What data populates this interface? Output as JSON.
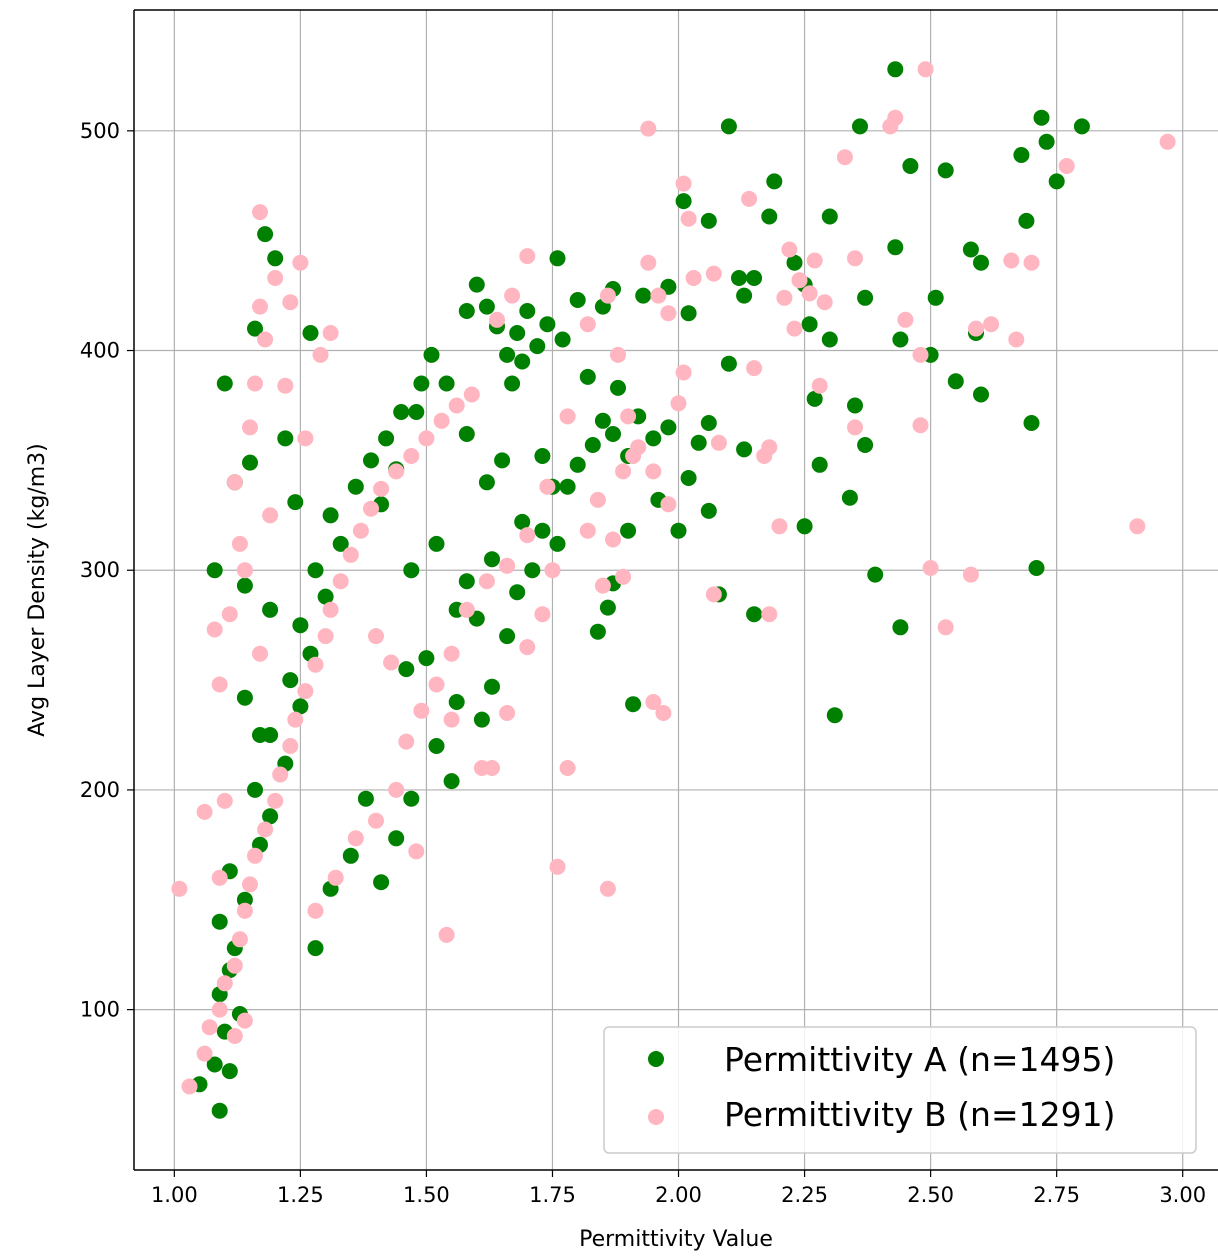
{
  "chart_data": {
    "type": "scatter",
    "title": "",
    "xlabel": "Permittivity Value",
    "ylabel": "Avg Layer Density (kg/m3)",
    "xlim": [
      0.92,
      3.07
    ],
    "ylim": [
      27,
      555
    ],
    "xticks": [
      "1.00",
      "1.25",
      "1.50",
      "1.75",
      "2.00",
      "2.25",
      "2.50",
      "2.75",
      "3.00"
    ],
    "yticks": [
      "100",
      "200",
      "300",
      "400",
      "500"
    ],
    "grid": true,
    "legend": {
      "placement": "lower right"
    },
    "series": [
      {
        "name": "Permittivity A (n=1495)",
        "color": "#008000",
        "points": [
          [
            1.09,
            54
          ],
          [
            1.05,
            66
          ],
          [
            1.08,
            75
          ],
          [
            1.11,
            72
          ],
          [
            1.1,
            90
          ],
          [
            1.13,
            98
          ],
          [
            1.09,
            107
          ],
          [
            1.11,
            118
          ],
          [
            1.12,
            128
          ],
          [
            1.09,
            140
          ],
          [
            1.14,
            150
          ],
          [
            1.11,
            163
          ],
          [
            1.17,
            175
          ],
          [
            1.19,
            188
          ],
          [
            1.16,
            200
          ],
          [
            1.22,
            212
          ],
          [
            1.19,
            225
          ],
          [
            1.25,
            238
          ],
          [
            1.23,
            250
          ],
          [
            1.27,
            262
          ],
          [
            1.25,
            275
          ],
          [
            1.3,
            288
          ],
          [
            1.28,
            300
          ],
          [
            1.33,
            312
          ],
          [
            1.31,
            325
          ],
          [
            1.36,
            338
          ],
          [
            1.39,
            350
          ],
          [
            1.42,
            360
          ],
          [
            1.45,
            372
          ],
          [
            1.49,
            385
          ],
          [
            1.51,
            398
          ],
          [
            1.08,
            300
          ],
          [
            1.1,
            385
          ],
          [
            1.12,
            340
          ],
          [
            1.16,
            410
          ],
          [
            1.2,
            442
          ],
          [
            1.27,
            408
          ],
          [
            1.18,
            453
          ],
          [
            1.22,
            360
          ],
          [
            1.15,
            349
          ],
          [
            1.24,
            331
          ],
          [
            1.19,
            282
          ],
          [
            1.14,
            293
          ],
          [
            1.17,
            225
          ],
          [
            1.14,
            242
          ],
          [
            1.28,
            128
          ],
          [
            1.31,
            155
          ],
          [
            1.35,
            170
          ],
          [
            1.38,
            196
          ],
          [
            1.41,
            158
          ],
          [
            1.44,
            178
          ],
          [
            1.47,
            196
          ],
          [
            1.52,
            220
          ],
          [
            1.55,
            204
          ],
          [
            1.56,
            240
          ],
          [
            1.61,
            232
          ],
          [
            1.63,
            247
          ],
          [
            1.6,
            278
          ],
          [
            1.58,
            295
          ],
          [
            1.56,
            282
          ],
          [
            1.66,
            270
          ],
          [
            1.63,
            305
          ],
          [
            1.68,
            290
          ],
          [
            1.71,
            300
          ],
          [
            1.73,
            318
          ],
          [
            1.75,
            338
          ],
          [
            1.78,
            338
          ],
          [
            1.8,
            348
          ],
          [
            1.83,
            357
          ],
          [
            1.85,
            368
          ],
          [
            1.87,
            362
          ],
          [
            1.88,
            383
          ],
          [
            1.9,
            352
          ],
          [
            1.92,
            370
          ],
          [
            1.95,
            360
          ],
          [
            1.98,
            365
          ],
          [
            1.96,
            332
          ],
          [
            2.0,
            318
          ],
          [
            2.02,
            342
          ],
          [
            2.04,
            358
          ],
          [
            2.06,
            367
          ],
          [
            2.06,
            327
          ],
          [
            2.08,
            289
          ],
          [
            2.13,
            355
          ],
          [
            2.15,
            280
          ],
          [
            2.1,
            394
          ],
          [
            2.12,
            433
          ],
          [
            2.15,
            433
          ],
          [
            2.13,
            425
          ],
          [
            2.19,
            477
          ],
          [
            2.18,
            461
          ],
          [
            2.23,
            440
          ],
          [
            2.25,
            430
          ],
          [
            2.26,
            412
          ],
          [
            2.27,
            378
          ],
          [
            2.25,
            320
          ],
          [
            2.28,
            348
          ],
          [
            2.3,
            405
          ],
          [
            2.3,
            461
          ],
          [
            2.31,
            234
          ],
          [
            2.34,
            333
          ],
          [
            2.35,
            375
          ],
          [
            2.37,
            357
          ],
          [
            2.36,
            502
          ],
          [
            2.37,
            424
          ],
          [
            2.39,
            298
          ],
          [
            2.43,
            447
          ],
          [
            2.44,
            405
          ],
          [
            2.44,
            274
          ],
          [
            2.46,
            484
          ],
          [
            2.5,
            398
          ],
          [
            2.51,
            424
          ],
          [
            2.53,
            482
          ],
          [
            2.55,
            386
          ],
          [
            2.58,
            446
          ],
          [
            2.59,
            408
          ],
          [
            2.6,
            380
          ],
          [
            2.6,
            440
          ],
          [
            2.43,
            528
          ],
          [
            2.68,
            489
          ],
          [
            2.69,
            459
          ],
          [
            2.7,
            367
          ],
          [
            2.71,
            301
          ],
          [
            2.72,
            506
          ],
          [
            2.73,
            495
          ],
          [
            2.75,
            477
          ],
          [
            2.8,
            502
          ],
          [
            2.01,
            468
          ],
          [
            2.02,
            417
          ],
          [
            1.98,
            429
          ],
          [
            2.06,
            459
          ],
          [
            2.1,
            502
          ],
          [
            1.93,
            425
          ],
          [
            1.87,
            428
          ],
          [
            1.85,
            420
          ],
          [
            1.8,
            423
          ],
          [
            1.76,
            442
          ],
          [
            1.7,
            418
          ],
          [
            1.68,
            408
          ],
          [
            1.66,
            398
          ],
          [
            1.64,
            411
          ],
          [
            1.62,
            420
          ],
          [
            1.6,
            430
          ],
          [
            1.58,
            418
          ],
          [
            1.72,
            402
          ],
          [
            1.74,
            412
          ],
          [
            1.69,
            395
          ],
          [
            1.67,
            385
          ],
          [
            1.77,
            405
          ],
          [
            1.82,
            388
          ],
          [
            1.9,
            318
          ],
          [
            1.86,
            283
          ],
          [
            1.84,
            272
          ],
          [
            1.87,
            294
          ],
          [
            1.91,
            239
          ],
          [
            1.73,
            352
          ],
          [
            1.76,
            312
          ],
          [
            1.69,
            322
          ],
          [
            1.65,
            350
          ],
          [
            1.58,
            362
          ],
          [
            1.62,
            340
          ],
          [
            1.54,
            385
          ],
          [
            1.48,
            372
          ],
          [
            1.44,
            346
          ],
          [
            1.47,
            300
          ],
          [
            1.5,
            260
          ],
          [
            1.46,
            255
          ],
          [
            1.52,
            312
          ],
          [
            1.41,
            330
          ]
        ]
      },
      {
        "name": "Permittivity B (n=1291)",
        "color": "#ffb6c1",
        "points": [
          [
            1.01,
            155
          ],
          [
            1.03,
            65
          ],
          [
            1.06,
            80
          ],
          [
            1.07,
            92
          ],
          [
            1.09,
            100
          ],
          [
            1.1,
            112
          ],
          [
            1.12,
            120
          ],
          [
            1.13,
            132
          ],
          [
            1.14,
            145
          ],
          [
            1.15,
            157
          ],
          [
            1.16,
            170
          ],
          [
            1.18,
            182
          ],
          [
            1.2,
            195
          ],
          [
            1.21,
            207
          ],
          [
            1.23,
            220
          ],
          [
            1.24,
            232
          ],
          [
            1.26,
            245
          ],
          [
            1.28,
            257
          ],
          [
            1.3,
            270
          ],
          [
            1.31,
            282
          ],
          [
            1.33,
            295
          ],
          [
            1.35,
            307
          ],
          [
            1.37,
            318
          ],
          [
            1.39,
            328
          ],
          [
            1.41,
            337
          ],
          [
            1.44,
            345
          ],
          [
            1.47,
            352
          ],
          [
            1.5,
            360
          ],
          [
            1.53,
            368
          ],
          [
            1.56,
            375
          ],
          [
            1.59,
            380
          ],
          [
            1.06,
            190
          ],
          [
            1.09,
            248
          ],
          [
            1.08,
            273
          ],
          [
            1.11,
            280
          ],
          [
            1.13,
            312
          ],
          [
            1.12,
            340
          ],
          [
            1.15,
            365
          ],
          [
            1.16,
            385
          ],
          [
            1.18,
            405
          ],
          [
            1.17,
            420
          ],
          [
            1.2,
            433
          ],
          [
            1.17,
            463
          ],
          [
            1.25,
            440
          ],
          [
            1.29,
            398
          ],
          [
            1.31,
            408
          ],
          [
            1.22,
            384
          ],
          [
            1.23,
            422
          ],
          [
            1.26,
            360
          ],
          [
            1.19,
            325
          ],
          [
            1.14,
            300
          ],
          [
            1.17,
            262
          ],
          [
            1.1,
            195
          ],
          [
            1.09,
            160
          ],
          [
            1.12,
            88
          ],
          [
            1.14,
            95
          ],
          [
            1.28,
            145
          ],
          [
            1.32,
            160
          ],
          [
            1.36,
            178
          ],
          [
            1.4,
            186
          ],
          [
            1.44,
            200
          ],
          [
            1.48,
            172
          ],
          [
            1.54,
            134
          ],
          [
            1.55,
            232
          ],
          [
            1.61,
            210
          ],
          [
            1.63,
            210
          ],
          [
            1.66,
            235
          ],
          [
            1.7,
            265
          ],
          [
            1.73,
            280
          ],
          [
            1.75,
            300
          ],
          [
            1.78,
            210
          ],
          [
            1.76,
            165
          ],
          [
            1.86,
            155
          ],
          [
            1.82,
            318
          ],
          [
            1.84,
            332
          ],
          [
            1.87,
            314
          ],
          [
            1.89,
            345
          ],
          [
            1.92,
            356
          ],
          [
            1.95,
            345
          ],
          [
            1.98,
            330
          ],
          [
            1.97,
            235
          ],
          [
            1.95,
            240
          ],
          [
            2.0,
            376
          ],
          [
            2.01,
            390
          ],
          [
            1.94,
            440
          ],
          [
            1.96,
            425
          ],
          [
            1.98,
            417
          ],
          [
            1.7,
            443
          ],
          [
            1.86,
            425
          ],
          [
            1.82,
            412
          ],
          [
            1.64,
            414
          ],
          [
            1.67,
            425
          ],
          [
            1.94,
            501
          ],
          [
            2.01,
            476
          ],
          [
            2.03,
            433
          ],
          [
            2.07,
            435
          ],
          [
            2.02,
            460
          ],
          [
            2.07,
            289
          ],
          [
            2.08,
            358
          ],
          [
            2.17,
            352
          ],
          [
            2.18,
            356
          ],
          [
            2.18,
            280
          ],
          [
            2.15,
            392
          ],
          [
            2.14,
            469
          ],
          [
            2.22,
            446
          ],
          [
            2.21,
            424
          ],
          [
            2.24,
            432
          ],
          [
            2.26,
            426
          ],
          [
            2.28,
            384
          ],
          [
            2.23,
            410
          ],
          [
            2.2,
            320
          ],
          [
            2.27,
            441
          ],
          [
            2.29,
            422
          ],
          [
            2.33,
            488
          ],
          [
            2.35,
            442
          ],
          [
            2.35,
            365
          ],
          [
            2.42,
            502
          ],
          [
            2.43,
            506
          ],
          [
            2.45,
            414
          ],
          [
            2.48,
            398
          ],
          [
            2.48,
            366
          ],
          [
            2.5,
            301
          ],
          [
            2.49,
            528
          ],
          [
            2.53,
            274
          ],
          [
            2.58,
            298
          ],
          [
            2.59,
            410
          ],
          [
            2.62,
            412
          ],
          [
            2.66,
            441
          ],
          [
            2.67,
            405
          ],
          [
            2.7,
            440
          ],
          [
            2.77,
            484
          ],
          [
            2.91,
            320
          ],
          [
            2.97,
            495
          ],
          [
            1.88,
            398
          ],
          [
            1.91,
            352
          ],
          [
            1.89,
            297
          ],
          [
            1.85,
            293
          ],
          [
            1.9,
            370
          ],
          [
            1.78,
            370
          ],
          [
            1.74,
            338
          ],
          [
            1.7,
            316
          ],
          [
            1.66,
            302
          ],
          [
            1.62,
            295
          ],
          [
            1.58,
            282
          ],
          [
            1.55,
            262
          ],
          [
            1.52,
            248
          ],
          [
            1.49,
            236
          ],
          [
            1.46,
            222
          ],
          [
            1.43,
            258
          ],
          [
            1.4,
            270
          ]
        ]
      }
    ]
  }
}
